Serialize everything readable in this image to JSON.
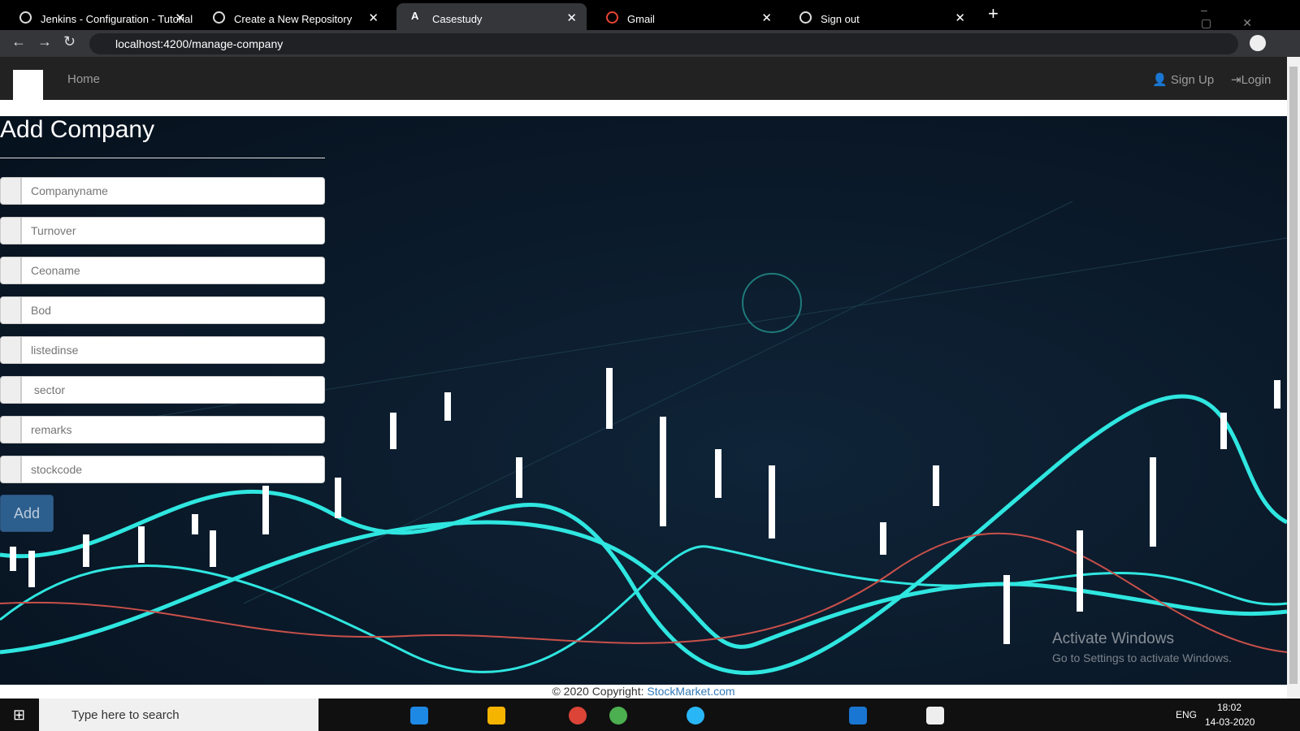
{
  "browser": {
    "tabs": [
      "Jenkins - Configuration - Tutorial",
      "Create a New Repository",
      "Casestudy",
      "Gmail",
      "Sign out"
    ],
    "url": "localhost:4200/manage-company"
  },
  "navbar": {
    "home": "Home",
    "sign_up": "Sign Up",
    "login": "Login"
  },
  "form": {
    "title": "Add Company",
    "fields": [
      "Companyname",
      "Turnover",
      "Ceoname",
      "Bod",
      "listedinse",
      " sector",
      "remarks",
      "stockcode"
    ],
    "submit": "Add"
  },
  "footer": {
    "copyright": "© 2020 Copyright:",
    "link": "StockMarket.com"
  },
  "watermark": {
    "title": "Activate Windows",
    "subtitle": "Go to Settings to activate Windows."
  },
  "taskbar": {
    "search": "Type here to search",
    "language": "ENG",
    "time": "18:02",
    "date": "14-03-2020"
  }
}
